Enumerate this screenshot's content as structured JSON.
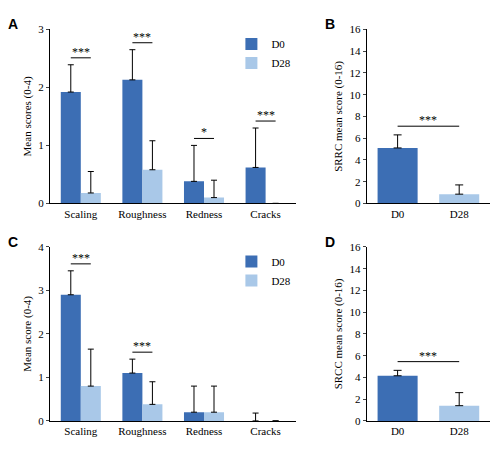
{
  "chart_data": [
    {
      "panel": "A",
      "type": "bar",
      "categories": [
        "Scaling",
        "Roughness",
        "Redness",
        "Cracks"
      ],
      "y_label": "Mean scores (0-4)",
      "series": [
        {
          "name": "D0",
          "color": "#3c6eb4",
          "values": [
            1.92,
            2.13,
            0.38,
            0.62
          ],
          "errors": [
            0.47,
            0.52,
            0.62,
            0.68
          ]
        },
        {
          "name": "D28",
          "color": "#a9c8e8",
          "values": [
            0.18,
            0.58,
            0.1,
            0
          ],
          "errors": [
            0.37,
            0.5,
            0.3,
            0
          ]
        }
      ],
      "significance": [
        "***",
        "***",
        "*",
        "***"
      ],
      "ylim": [
        0,
        3
      ],
      "yticks": [
        0,
        1,
        2,
        3
      ],
      "legend": "top right"
    },
    {
      "panel": "B",
      "type": "bar",
      "categories": [
        "D0",
        "D28"
      ],
      "values": [
        5.1,
        0.85
      ],
      "errors": [
        1.2,
        0.85
      ],
      "colors": [
        "#3c6eb4",
        "#a9c8e8"
      ],
      "y_label": "SRRC mean score (0-16)",
      "significance": "***",
      "ylim": [
        0,
        16
      ],
      "yticks": [
        0,
        2,
        4,
        6,
        8,
        10,
        12,
        14,
        16
      ]
    },
    {
      "panel": "C",
      "type": "bar",
      "categories": [
        "Scaling",
        "Roughness",
        "Redness",
        "Cracks"
      ],
      "y_label": "Mean score (0-4)",
      "series": [
        {
          "name": "D0",
          "color": "#3c6eb4",
          "values": [
            2.9,
            1.1,
            0.2,
            0
          ],
          "errors": [
            0.55,
            0.32,
            0.6,
            0.18
          ]
        },
        {
          "name": "D28",
          "color": "#a9c8e8",
          "values": [
            0.8,
            0.38,
            0.2,
            0
          ],
          "errors": [
            0.85,
            0.52,
            0.6,
            0
          ]
        }
      ],
      "significance": [
        "***",
        "***",
        null,
        null
      ],
      "ylim": [
        0,
        4
      ],
      "yticks": [
        0,
        1,
        2,
        3,
        4
      ],
      "legend": "top right"
    },
    {
      "panel": "D",
      "type": "bar",
      "categories": [
        "D0",
        "D28"
      ],
      "values": [
        4.15,
        1.4
      ],
      "errors": [
        0.5,
        1.2
      ],
      "colors": [
        "#3c6eb4",
        "#a9c8e8"
      ],
      "y_label": "SRCC mean score (0-16)",
      "significance": "***",
      "ylim": [
        0,
        16
      ],
      "yticks": [
        0,
        2,
        4,
        6,
        8,
        10,
        12,
        14,
        16
      ]
    }
  ]
}
